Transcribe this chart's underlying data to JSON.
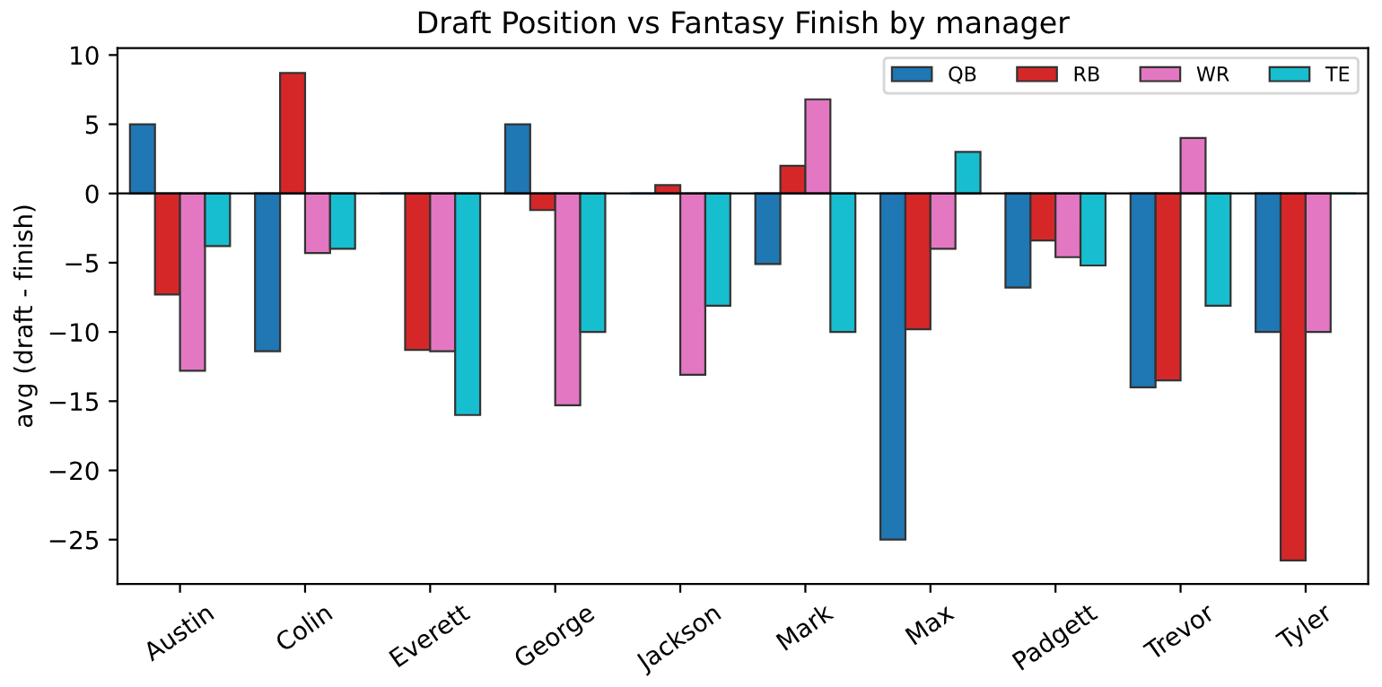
{
  "chart_data": {
    "type": "bar",
    "title": "Draft Position vs Fantasy Finish by manager",
    "ylabel": "avg (draft - finish)",
    "categories": [
      "Austin",
      "Colin",
      "Everett",
      "George",
      "Jackson",
      "Mark",
      "Max",
      "Padgett",
      "Trevor",
      "Tyler"
    ],
    "series": [
      {
        "name": "QB",
        "color": "#1f77b4",
        "values": [
          5,
          -11.4,
          0,
          5,
          0,
          -5.1,
          -25,
          -6.8,
          -14,
          -10
        ]
      },
      {
        "name": "RB",
        "color": "#d62728",
        "values": [
          -7.3,
          8.7,
          -11.3,
          -1.2,
          0.6,
          2,
          -9.8,
          -3.4,
          -13.5,
          -26.5
        ]
      },
      {
        "name": "WR",
        "color": "#e377c2",
        "values": [
          -12.8,
          -4.3,
          -11.4,
          -15.3,
          -13.1,
          6.8,
          -4,
          -4.6,
          4,
          -10
        ]
      },
      {
        "name": "TE",
        "color": "#17becf",
        "values": [
          -3.8,
          -4,
          -16,
          -10,
          -8.1,
          -10,
          3,
          -5.2,
          -8.1,
          0
        ]
      }
    ],
    "ylim": [
      -28.2,
      10.5
    ],
    "yticks": [
      -25,
      -20,
      -15,
      -10,
      -5,
      0,
      5,
      10
    ],
    "ref_lines": [
      {
        "axis": "y",
        "value": 0,
        "color": "#000000"
      }
    ],
    "legend": "top right",
    "grid": false
  }
}
